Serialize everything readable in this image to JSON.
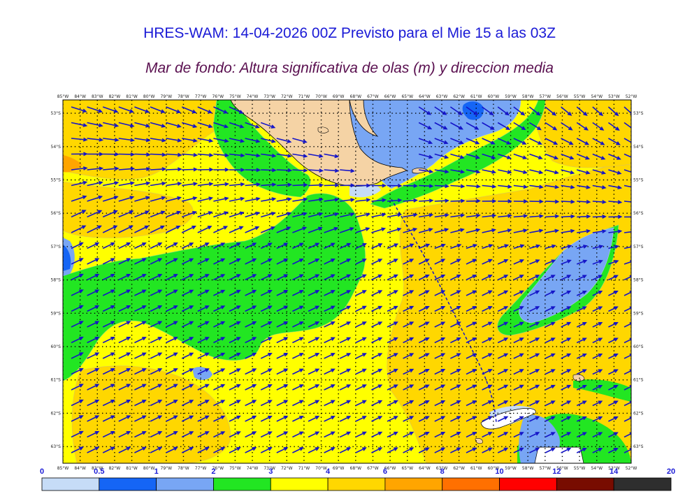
{
  "title": "HRES-WAM: 14-04-2026 00Z Previsto para el Mie 15 a las 03Z",
  "subtitle": "Mar de fondo: Altura significativa de olas (m) y direccion media",
  "map": {
    "lon_labels": [
      "85°W",
      "84°W",
      "83°W",
      "82°W",
      "81°W",
      "80°W",
      "79°W",
      "78°W",
      "77°W",
      "76°W",
      "75°W",
      "74°W",
      "73°W",
      "72°W",
      "71°W",
      "70°W",
      "69°W",
      "68°W",
      "67°W",
      "66°W",
      "65°W",
      "64°W",
      "63°W",
      "62°W",
      "61°W",
      "60°W",
      "59°W",
      "58°W",
      "57°W",
      "56°W",
      "55°W",
      "54°W",
      "53°W",
      "52°W"
    ],
    "lat_labels": [
      "53°S",
      "54°S",
      "55°S",
      "56°S",
      "57°S",
      "58°S",
      "59°S",
      "60°S",
      "61°S",
      "62°S",
      "63°S"
    ],
    "lon_range": [
      -85,
      -52
    ],
    "lat_range": [
      -63.5,
      -52.6
    ]
  },
  "colorbar": {
    "labels": [
      "0",
      "0.5",
      "1",
      "2",
      "3",
      "4",
      "6",
      "8",
      "10",
      "12",
      "14",
      "20"
    ],
    "colors": [
      "#c6dcf7",
      "#1565f5",
      "#78a6f4",
      "#22e622",
      "#ffff00",
      "#ffd700",
      "#ffa500",
      "#ff7000",
      "#ff0000",
      "#780c00",
      "#2e2e2e"
    ]
  },
  "colors": {
    "land": "#f5d3a5",
    "arrow": "#1414c8",
    "title": "#1a1ad6",
    "subtitle": "#5a1050"
  }
}
